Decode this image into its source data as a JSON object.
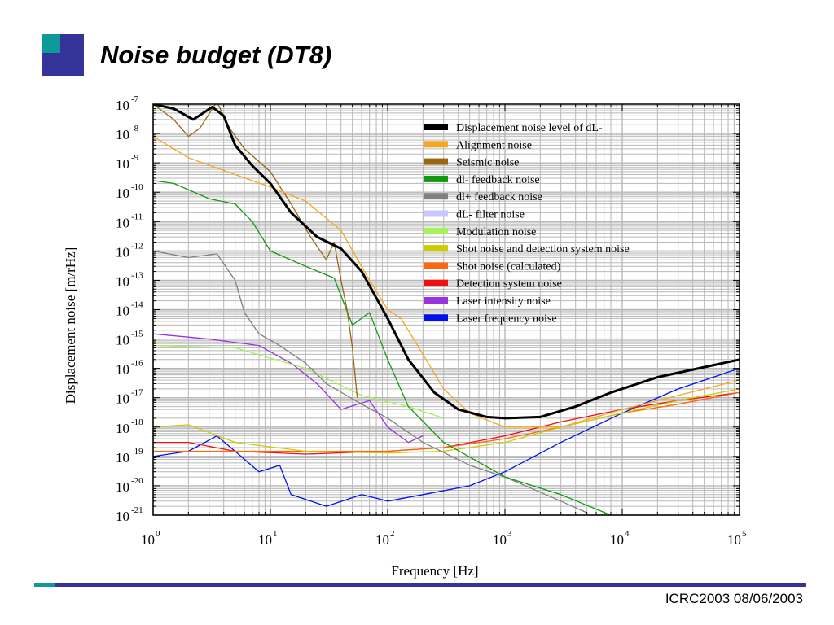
{
  "slide": {
    "title": "Noise budget (DT8)",
    "footer": "ICRC2003 08/06/2003",
    "colors": {
      "accent_navy": "#333399",
      "accent_teal": "#0f9a9a"
    }
  },
  "chart_data": {
    "type": "line",
    "title": "",
    "xlabel": "Frequency [Hz]",
    "ylabel": "Displacement noise [m/rHz]",
    "xscale": "log",
    "yscale": "log",
    "xlim": [
      1,
      100000
    ],
    "ylim": [
      1e-21,
      1e-07
    ],
    "grid": true,
    "legend_position": "top-right",
    "x_ticks": [
      {
        "base": "10",
        "exp": "0",
        "value": 1
      },
      {
        "base": "10",
        "exp": "1",
        "value": 10
      },
      {
        "base": "10",
        "exp": "2",
        "value": 100
      },
      {
        "base": "10",
        "exp": "3",
        "value": 1000
      },
      {
        "base": "10",
        "exp": "4",
        "value": 10000
      },
      {
        "base": "10",
        "exp": "5",
        "value": 100000
      }
    ],
    "y_ticks": [
      {
        "base": "10",
        "exp": "-7",
        "value": 1e-07
      },
      {
        "base": "10",
        "exp": "-8",
        "value": 1e-08
      },
      {
        "base": "10",
        "exp": "-9",
        "value": 1e-09
      },
      {
        "base": "10",
        "exp": "-10",
        "value": 1e-10
      },
      {
        "base": "10",
        "exp": "-11",
        "value": 1e-11
      },
      {
        "base": "10",
        "exp": "-12",
        "value": 1e-12
      },
      {
        "base": "10",
        "exp": "-13",
        "value": 1e-13
      },
      {
        "base": "10",
        "exp": "-14",
        "value": 1e-14
      },
      {
        "base": "10",
        "exp": "-15",
        "value": 1e-15
      },
      {
        "base": "10",
        "exp": "-16",
        "value": 1e-16
      },
      {
        "base": "10",
        "exp": "-17",
        "value": 1e-17
      },
      {
        "base": "10",
        "exp": "-18",
        "value": 1e-18
      },
      {
        "base": "10",
        "exp": "-19",
        "value": 1e-19
      },
      {
        "base": "10",
        "exp": "-20",
        "value": 1e-20
      },
      {
        "base": "10",
        "exp": "-21",
        "value": 1e-21
      }
    ],
    "series": [
      {
        "name": "Displacement noise level of dL-",
        "color": "#000000",
        "width": 3,
        "points": [
          [
            1,
            1e-07
          ],
          [
            1.5,
            7e-08
          ],
          [
            2.2,
            3e-08
          ],
          [
            3.2,
            8e-08
          ],
          [
            4,
            4e-08
          ],
          [
            5,
            4e-09
          ],
          [
            7,
            8e-10
          ],
          [
            10,
            2e-10
          ],
          [
            15,
            2e-11
          ],
          [
            25,
            3e-12
          ],
          [
            40,
            1.2e-12
          ],
          [
            60,
            2e-13
          ],
          [
            100,
            5e-15
          ],
          [
            150,
            2e-16
          ],
          [
            250,
            1.5e-17
          ],
          [
            400,
            4e-18
          ],
          [
            700,
            2.2e-18
          ],
          [
            1000,
            2e-18
          ],
          [
            2000,
            2.2e-18
          ],
          [
            4000,
            5e-18
          ],
          [
            8000,
            1.5e-17
          ],
          [
            20000,
            5e-17
          ],
          [
            50000,
            1.1e-16
          ],
          [
            100000,
            2e-16
          ]
        ]
      },
      {
        "name": "Alignment noise",
        "color": "#f5a623",
        "width": 1.3,
        "points": [
          [
            1,
            8e-09
          ],
          [
            2,
            1.5e-09
          ],
          [
            5,
            4e-10
          ],
          [
            10,
            1.5e-10
          ],
          [
            20,
            5e-11
          ],
          [
            40,
            5e-12
          ],
          [
            70,
            1e-13
          ],
          [
            100,
            1e-14
          ],
          [
            130,
            5e-15
          ],
          [
            200,
            3e-16
          ],
          [
            300,
            2e-17
          ],
          [
            500,
            3e-18
          ],
          [
            1000,
            1e-18
          ],
          [
            3000,
            1e-18
          ],
          [
            10000,
            4e-18
          ],
          [
            50000,
            2e-17
          ],
          [
            100000,
            4e-17
          ]
        ]
      },
      {
        "name": "Seismic noise",
        "color": "#996611",
        "width": 1.3,
        "points": [
          [
            1,
            1e-07
          ],
          [
            1.5,
            3e-08
          ],
          [
            2,
            8e-09
          ],
          [
            2.5,
            1.5e-08
          ],
          [
            3.5,
            1.2e-07
          ],
          [
            4.5,
            1.5e-08
          ],
          [
            6,
            3e-09
          ],
          [
            10,
            5e-10
          ],
          [
            15,
            4e-11
          ],
          [
            22,
            3e-12
          ],
          [
            30,
            5e-13
          ],
          [
            35,
            2e-12
          ],
          [
            40,
            1e-13
          ],
          [
            45,
            1e-14
          ],
          [
            50,
            5e-16
          ],
          [
            55,
            1e-17
          ]
        ]
      },
      {
        "name": "dl- feedback noise",
        "color": "#119911",
        "width": 1.3,
        "points": [
          [
            1,
            2.5e-10
          ],
          [
            1.5,
            2e-10
          ],
          [
            3,
            6e-11
          ],
          [
            5,
            4e-11
          ],
          [
            7,
            1e-11
          ],
          [
            10,
            1e-12
          ],
          [
            20,
            3e-13
          ],
          [
            35,
            1.2e-13
          ],
          [
            50,
            3e-15
          ],
          [
            70,
            8e-15
          ],
          [
            100,
            2e-16
          ],
          [
            150,
            5e-18
          ],
          [
            300,
            3e-19
          ],
          [
            1000,
            2e-20
          ],
          [
            3000,
            5e-21
          ],
          [
            8000,
            1e-21
          ]
        ]
      },
      {
        "name": "dl+ feedback noise",
        "color": "#808080",
        "width": 1.3,
        "points": [
          [
            1,
            1e-12
          ],
          [
            2,
            6e-13
          ],
          [
            3.5,
            8e-13
          ],
          [
            5,
            1e-13
          ],
          [
            6,
            8e-15
          ],
          [
            8,
            1.5e-15
          ],
          [
            12,
            6e-16
          ],
          [
            20,
            1.5e-16
          ],
          [
            30,
            3e-17
          ],
          [
            60,
            6e-18
          ],
          [
            100,
            2e-18
          ],
          [
            200,
            3e-19
          ],
          [
            500,
            5e-20
          ],
          [
            1000,
            2e-20
          ],
          [
            3000,
            3e-21
          ],
          [
            5000,
            1.2e-21
          ]
        ]
      },
      {
        "name": "dL- filter noise",
        "color": "#c8c8ff",
        "width": 1.3,
        "points": []
      },
      {
        "name": "Modulation noise",
        "color": "#a6f25a",
        "width": 1.3,
        "points": [
          [
            1,
            6e-16
          ],
          [
            5,
            5e-16
          ],
          [
            20,
            1e-16
          ],
          [
            60,
            1.2e-17
          ],
          [
            150,
            5e-18
          ],
          [
            300,
            2e-18
          ]
        ]
      },
      {
        "name": "Shot noise and detection system noise",
        "color": "#cccc00",
        "width": 1.3,
        "points": [
          [
            1,
            1e-18
          ],
          [
            2,
            1.2e-18
          ],
          [
            5,
            3e-19
          ],
          [
            20,
            1.5e-19
          ],
          [
            100,
            1.3e-19
          ],
          [
            300,
            1.5e-19
          ],
          [
            1000,
            3e-19
          ],
          [
            3000,
            1e-18
          ],
          [
            10000,
            3e-18
          ],
          [
            30000,
            8e-18
          ],
          [
            100000,
            2e-17
          ]
        ]
      },
      {
        "name": "Shot noise (calculated)",
        "color": "#ff6611",
        "width": 1.3,
        "points": [
          [
            1,
            1.5e-19
          ],
          [
            100,
            1.5e-19
          ],
          [
            300,
            2e-19
          ],
          [
            1000,
            4e-19
          ],
          [
            3000,
            1e-18
          ],
          [
            10000,
            3e-18
          ],
          [
            30000,
            6e-18
          ],
          [
            100000,
            1.5e-17
          ]
        ]
      },
      {
        "name": "Detection system noise",
        "color": "#ee1111",
        "width": 1.3,
        "points": [
          [
            1,
            3e-19
          ],
          [
            2,
            3e-19
          ],
          [
            5,
            1.5e-19
          ],
          [
            20,
            1.2e-19
          ],
          [
            100,
            1.5e-19
          ],
          [
            300,
            2e-19
          ],
          [
            1000,
            5e-19
          ],
          [
            3000,
            1.5e-18
          ],
          [
            10000,
            4e-18
          ],
          [
            30000,
            8e-18
          ],
          [
            100000,
            1.5e-17
          ]
        ]
      },
      {
        "name": "Laser intensity noise",
        "color": "#9933dd",
        "width": 1.3,
        "points": [
          [
            1,
            1.5e-15
          ],
          [
            3,
            1e-15
          ],
          [
            8,
            6e-16
          ],
          [
            15,
            1.5e-16
          ],
          [
            25,
            3e-17
          ],
          [
            40,
            4e-18
          ],
          [
            70,
            8e-18
          ],
          [
            100,
            1e-18
          ],
          [
            150,
            3e-19
          ],
          [
            200,
            5e-19
          ]
        ]
      },
      {
        "name": "Laser frequency noise",
        "color": "#0011ee",
        "width": 1.3,
        "points": [
          [
            1,
            1e-19
          ],
          [
            2,
            1.5e-19
          ],
          [
            3.5,
            5e-19
          ],
          [
            5,
            1.5e-19
          ],
          [
            8,
            3e-20
          ],
          [
            12,
            5e-20
          ],
          [
            15,
            5e-21
          ],
          [
            30,
            2e-21
          ],
          [
            60,
            5e-21
          ],
          [
            100,
            3e-21
          ],
          [
            200,
            5e-21
          ],
          [
            500,
            1e-20
          ],
          [
            1000,
            3e-20
          ],
          [
            3000,
            3e-19
          ],
          [
            10000,
            3e-18
          ],
          [
            30000,
            2e-17
          ],
          [
            100000,
            1e-16
          ]
        ]
      }
    ]
  }
}
